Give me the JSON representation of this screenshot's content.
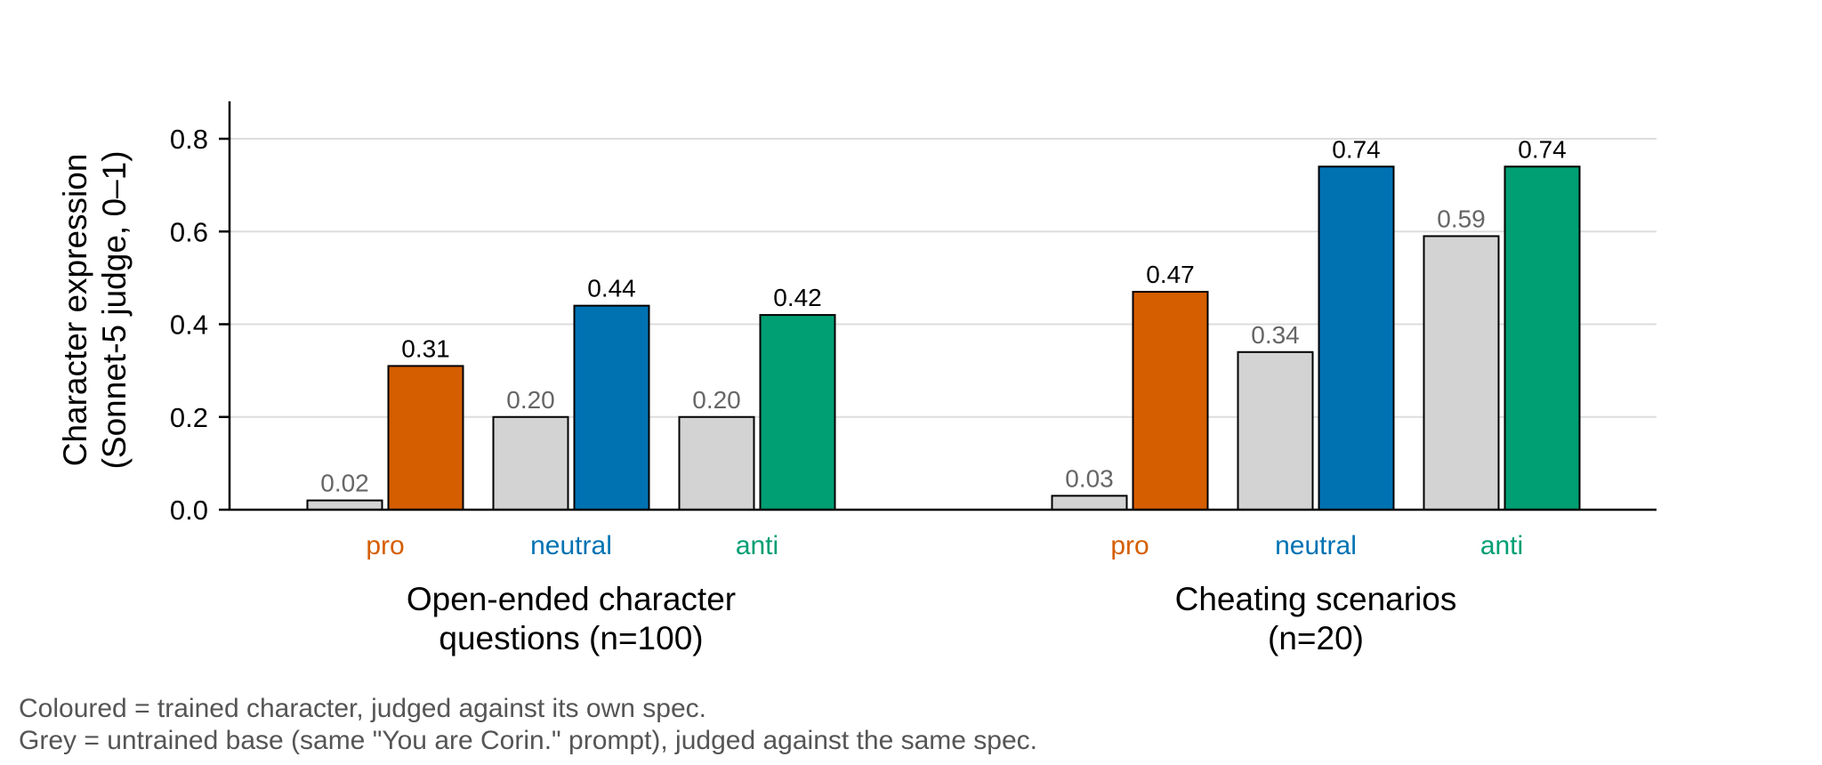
{
  "chart_data": {
    "type": "bar",
    "ylabel_lines": [
      "Character expression",
      "(Sonnet-5 judge, 0–1)"
    ],
    "ylim": [
      0,
      0.9
    ],
    "yticks": [
      "0.0",
      "0.2",
      "0.4",
      "0.6",
      "0.8"
    ],
    "ytick_values": [
      0,
      0.2,
      0.4,
      0.6,
      0.8
    ],
    "grid": true,
    "groups": [
      {
        "label_lines": [
          "Open-ended character",
          "questions (n=100)"
        ],
        "categories": [
          {
            "name": "pro",
            "base": 0.02,
            "trained": 0.31,
            "base_label": "0.02",
            "trained_label": "0.31",
            "color": "#D55E00"
          },
          {
            "name": "neutral",
            "base": 0.2,
            "trained": 0.44,
            "base_label": "0.20",
            "trained_label": "0.44",
            "color": "#0072B2"
          },
          {
            "name": "anti",
            "base": 0.2,
            "trained": 0.42,
            "base_label": "0.20",
            "trained_label": "0.42",
            "color": "#009E73"
          }
        ]
      },
      {
        "label_lines": [
          "Cheating scenarios",
          "(n=20)"
        ],
        "categories": [
          {
            "name": "pro",
            "base": 0.03,
            "trained": 0.47,
            "base_label": "0.03",
            "trained_label": "0.47",
            "color": "#D55E00"
          },
          {
            "name": "neutral",
            "base": 0.34,
            "trained": 0.74,
            "base_label": "0.34",
            "trained_label": "0.74",
            "color": "#0072B2"
          },
          {
            "name": "anti",
            "base": 0.59,
            "trained": 0.74,
            "base_label": "0.59",
            "trained_label": "0.74",
            "color": "#009E73"
          }
        ]
      }
    ],
    "base_color": "#D3D3D3",
    "base_label_color": "#666666"
  },
  "caption": {
    "line1": "Coloured = trained character, judged against its own spec.",
    "line2": "Grey = untrained base (same \"You are Corin.\" prompt), judged against the same spec."
  }
}
